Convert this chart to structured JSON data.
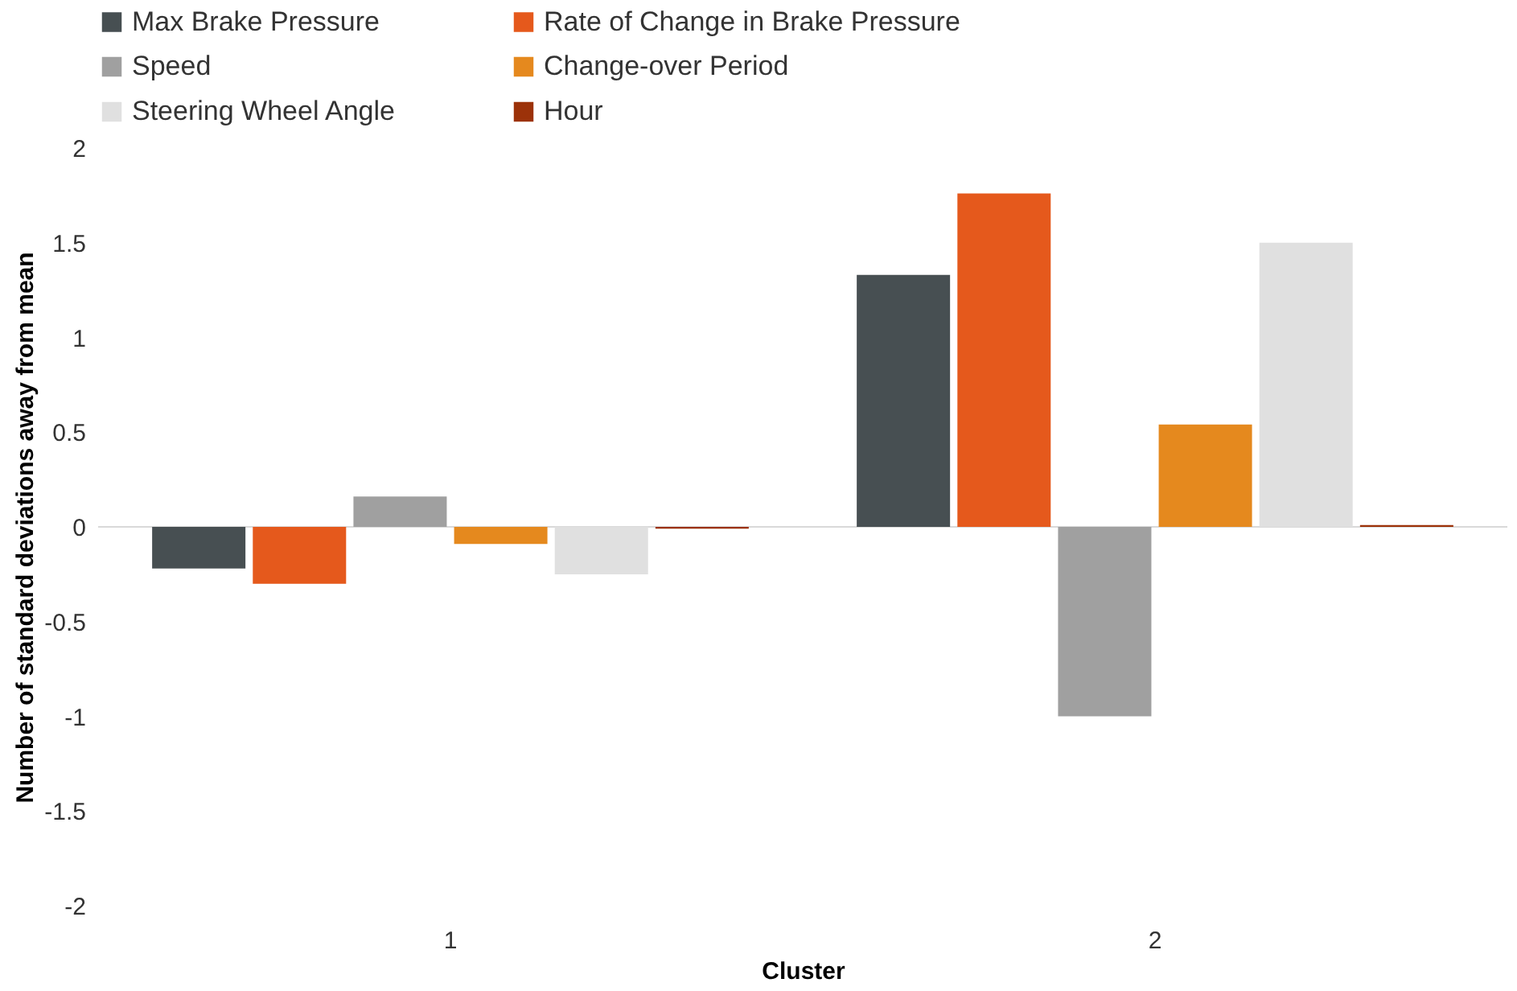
{
  "chart_data": {
    "type": "bar",
    "xlabel": "Cluster",
    "ylabel": "Number of standard deviations away from mean",
    "categories": [
      "1",
      "2"
    ],
    "series": [
      {
        "name": "Max Brake Pressure",
        "color": "#474f52",
        "values": [
          -0.22,
          1.33
        ]
      },
      {
        "name": "Rate of Change in Brake Pressure",
        "color": "#e5591c",
        "values": [
          -0.3,
          1.76
        ]
      },
      {
        "name": "Speed",
        "color": "#a0a0a0",
        "values": [
          0.16,
          -1.0
        ]
      },
      {
        "name": "Change-over Period",
        "color": "#e5891e",
        "values": [
          -0.09,
          0.54
        ]
      },
      {
        "name": "Steering Wheel Angle",
        "color": "#e0e0e0",
        "values": [
          -0.25,
          1.5
        ]
      },
      {
        "name": "Hour",
        "color": "#9c3209",
        "values": [
          -0.01,
          0.01
        ]
      }
    ],
    "ylim": [
      -2,
      2
    ],
    "yticks": [
      -2,
      -1.5,
      -1,
      -0.5,
      0,
      0.5,
      1,
      1.5,
      2
    ],
    "ref_lines": [
      {
        "axis": "y",
        "value": 0,
        "color": "#d9d9d9"
      }
    ],
    "grid": false,
    "legend": "top"
  }
}
